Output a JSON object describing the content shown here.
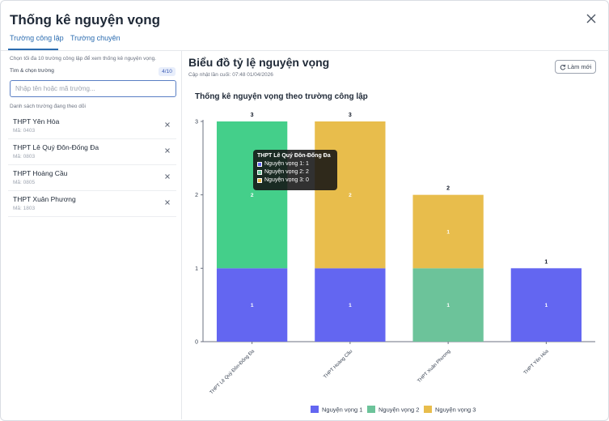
{
  "modal": {
    "title": "Thống kê nguyện vọng",
    "tabs": [
      {
        "label": "Trường công lập",
        "active": true
      },
      {
        "label": "Trường chuyên",
        "active": false
      }
    ]
  },
  "sidebar": {
    "hint": "Chọn tối đa 10 trường công lập để xem thống kê nguyện vọng.",
    "search_label": "Tìm & chọn trường",
    "count": "4/10",
    "search_placeholder": "Nhập tên hoặc mã trường...",
    "list_label": "Danh sách trường đang theo dõi",
    "schools": [
      {
        "name": "THPT Yên Hòa",
        "code": "Mã: 0403"
      },
      {
        "name": "THPT Lê Quý Đôn-Đống Đa",
        "code": "Mã: 0803"
      },
      {
        "name": "THPT Hoàng Cầu",
        "code": "Mã: 0805"
      },
      {
        "name": "THPT Xuân Phương",
        "code": "Mã: 1803"
      }
    ]
  },
  "main": {
    "title": "Biểu đồ tỷ lệ nguyện vọng",
    "updated": "Cập nhật lần cuối: 07:48 01/04/2026",
    "refresh_label": "Làm mới",
    "subtitle": "Thống kê nguyện vọng theo trường công lập"
  },
  "tooltip": {
    "title": "THPT Lê Quý Đôn-Đống Đa",
    "rows": [
      "Nguyện vọng 1: 1",
      "Nguyện vọng 2: 2",
      "Nguyện vọng 3: 0"
    ]
  },
  "chart_data": {
    "type": "bar",
    "stacked": true,
    "categories": [
      "THPT Lê Quý Đôn-Đống Đa",
      "THPT Hoàng Cầu",
      "THPT Xuân Phương",
      "THPT Yên Hòa"
    ],
    "series": [
      {
        "name": "Nguyện vọng 1",
        "values": [
          1,
          1,
          0,
          1
        ],
        "color": "#6366f1"
      },
      {
        "name": "Nguyện vọng 2",
        "values": [
          2,
          0,
          1,
          0
        ],
        "color": "#6cc39a"
      },
      {
        "name": "Nguyện vọng 3",
        "values": [
          0,
          2,
          1,
          0
        ],
        "color": "#e8bd4c"
      }
    ],
    "totals": [
      3,
      3,
      2,
      1
    ],
    "yticks": [
      0,
      1,
      2,
      3
    ],
    "ylim": [
      0,
      3
    ],
    "highlight_color": "#44cf8a",
    "legend_position": "bottom"
  }
}
